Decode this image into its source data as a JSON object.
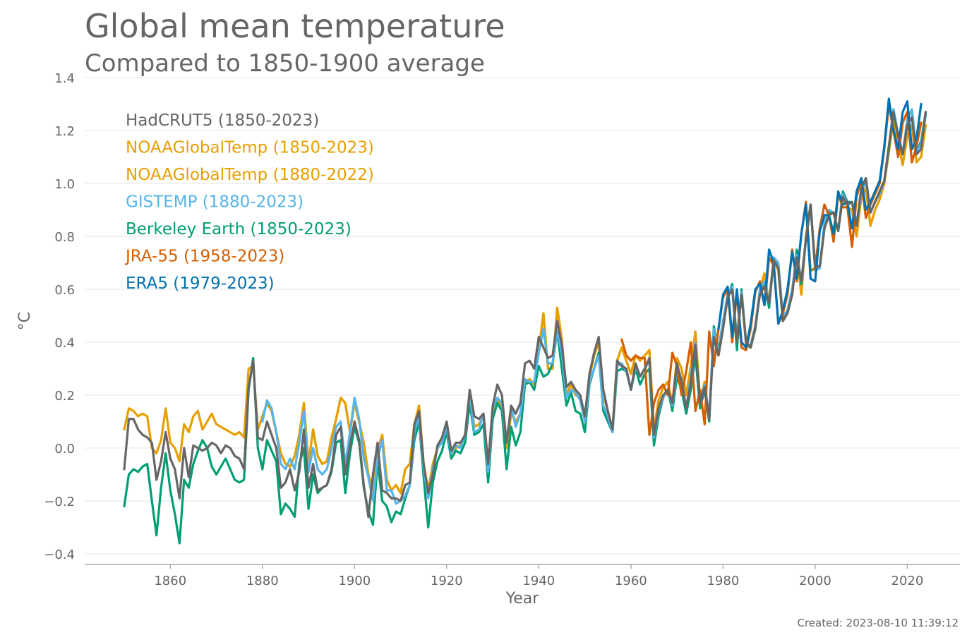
{
  "chart_data": {
    "type": "line",
    "title": "Global mean temperature",
    "subtitle": "Compared to 1850-1900 average",
    "xlabel": "Year",
    "ylabel": "°C",
    "xlim": [
      1833,
      2023
    ],
    "ylim": [
      -0.44,
      1.4
    ],
    "yticks": [
      -0.4,
      -0.2,
      0.0,
      0.2,
      0.4,
      0.6,
      0.8,
      1.0,
      1.2,
      1.4
    ],
    "ytick_labels": [
      "−0.4",
      "−0.2",
      "0.0",
      "0.2",
      "0.4",
      "0.6",
      "0.8",
      "1.0",
      "1.2",
      "1.4"
    ],
    "xticks": [
      1860,
      1880,
      1900,
      1920,
      1940,
      1960,
      1980,
      2000,
      2020
    ],
    "xtick_labels": [
      "1860",
      "1880",
      "1900",
      "1920",
      "1940",
      "1960",
      "1980",
      "2000",
      "2020"
    ],
    "grid": "horizontal",
    "legend_position": "top-left",
    "series": [
      {
        "name": "HadCRUT5 (1850-2023)",
        "color": "#666666",
        "start": 1850,
        "values": [
          -0.08,
          0.11,
          0.11,
          0.07,
          0.05,
          0.04,
          0.02,
          -0.12,
          -0.05,
          0.06,
          -0.04,
          -0.08,
          -0.19,
          0.0,
          -0.11,
          0.01,
          0.0,
          -0.01,
          0.0,
          0.02,
          0.01,
          -0.02,
          0.01,
          0.0,
          -0.03,
          -0.04,
          -0.08,
          0.23,
          0.33,
          0.04,
          0.03,
          0.1,
          0.05,
          0.0,
          -0.15,
          -0.13,
          -0.08,
          -0.16,
          -0.09,
          0.07,
          -0.15,
          -0.06,
          -0.16,
          -0.15,
          -0.14,
          -0.08,
          0.05,
          0.08,
          -0.1,
          0.01,
          0.1,
          0.03,
          -0.14,
          -0.26,
          -0.1,
          0.02,
          -0.16,
          -0.17,
          -0.19,
          -0.19,
          -0.2,
          -0.14,
          -0.13,
          0.09,
          0.14,
          -0.06,
          -0.17,
          -0.1,
          0.01,
          0.04,
          0.1,
          -0.01,
          0.02,
          0.02,
          0.05,
          0.22,
          0.12,
          0.11,
          0.13,
          -0.06,
          0.16,
          0.24,
          0.2,
          0.02,
          0.16,
          0.13,
          0.17,
          0.32,
          0.33,
          0.3,
          0.42,
          0.38,
          0.34,
          0.35,
          0.48,
          0.39,
          0.23,
          0.25,
          0.22,
          0.2,
          0.12,
          0.28,
          0.36,
          0.42,
          0.22,
          0.14,
          0.07,
          0.33,
          0.31,
          0.3,
          0.22,
          0.32,
          0.27,
          0.3,
          0.34,
          0.05,
          0.15,
          0.2,
          0.22,
          0.17,
          0.32,
          0.25,
          0.15,
          0.25,
          0.39,
          0.17,
          0.23,
          0.11,
          0.42,
          0.35,
          0.45,
          0.57,
          0.6,
          0.4,
          0.58,
          0.4,
          0.38,
          0.46,
          0.58,
          0.61,
          0.55,
          0.71,
          0.68,
          0.48,
          0.51,
          0.58,
          0.72,
          0.63,
          0.79,
          0.92,
          0.68,
          0.69,
          0.83,
          0.88,
          0.89,
          0.82,
          0.95,
          0.92,
          0.93,
          0.84,
          0.98,
          1.02,
          0.89,
          0.93,
          0.97,
          1.01,
          1.14,
          1.27,
          1.18,
          1.11,
          1.22,
          1.25,
          1.11,
          1.13,
          1.27
        ]
      },
      {
        "name": "NOAAGlobalTemp (1850-2023)",
        "color": "#E69F00",
        "start": 1850,
        "values": [
          0.07,
          0.15,
          0.14,
          0.12,
          0.13,
          0.12,
          0.0,
          -0.02,
          0.03,
          0.15,
          0.02,
          0.0,
          -0.05,
          0.09,
          0.06,
          0.12,
          0.14,
          0.07,
          0.1,
          0.13,
          0.09,
          0.08,
          0.07,
          0.06,
          0.05,
          0.06,
          0.04,
          0.3,
          0.31,
          0.07,
          0.12,
          0.17,
          0.14,
          0.06,
          -0.02,
          -0.06,
          -0.07,
          -0.03,
          0.05,
          0.17,
          -0.06,
          0.07,
          -0.03,
          -0.06,
          -0.05,
          0.04,
          0.11,
          0.19,
          0.17,
          0.06,
          0.17,
          0.1,
          0.02,
          -0.1,
          -0.16,
          -0.01,
          0.05,
          -0.12,
          -0.16,
          -0.14,
          -0.17,
          -0.08,
          -0.06,
          0.09,
          0.16,
          -0.06,
          -0.16,
          -0.06,
          0.0,
          0.03,
          0.08,
          -0.02,
          0.0,
          0.01,
          0.04,
          0.2,
          0.08,
          0.09,
          0.12,
          -0.06,
          0.14,
          0.19,
          0.14,
          0.0,
          0.13,
          0.1,
          0.13,
          0.25,
          0.26,
          0.24,
          0.37,
          0.51,
          0.3,
          0.3,
          0.53,
          0.41,
          0.2,
          0.24,
          0.2,
          0.19,
          0.11,
          0.27,
          0.35,
          0.4,
          0.2,
          0.14,
          0.07,
          0.33,
          0.38,
          0.33,
          0.28,
          0.35,
          0.33,
          0.35,
          0.37,
          0.07,
          0.18,
          0.23,
          0.25,
          0.17,
          0.34,
          0.3,
          0.2,
          0.31,
          0.44,
          0.18,
          0.25,
          0.11,
          0.43,
          0.35,
          0.46,
          0.58,
          0.6,
          0.42,
          0.59,
          0.39,
          0.38,
          0.45,
          0.6,
          0.66,
          0.54,
          0.71,
          0.67,
          0.48,
          0.52,
          0.58,
          0.74,
          0.58,
          0.8,
          0.92,
          0.68,
          0.68,
          0.84,
          0.88,
          0.89,
          0.82,
          0.95,
          0.91,
          0.9,
          0.8,
          0.95,
          0.98,
          0.84,
          0.9,
          0.94,
          1.0,
          1.12,
          1.24,
          1.16,
          1.07,
          1.18,
          1.22,
          1.08,
          1.1,
          1.22
        ]
      },
      {
        "name": "NOAAGlobalTemp (1880-2022)",
        "color": "#E69F00",
        "start": 1880,
        "values": [
          0.12,
          0.17,
          0.14,
          0.06,
          -0.02,
          -0.06,
          -0.07,
          -0.03,
          0.05,
          0.17,
          -0.06,
          0.07,
          -0.03,
          -0.06,
          -0.05,
          0.04,
          0.11,
          0.19,
          0.17,
          0.06,
          0.17,
          0.1,
          0.02,
          -0.1,
          -0.16,
          -0.01,
          0.05,
          -0.12,
          -0.16,
          -0.14,
          -0.17,
          -0.08,
          -0.06,
          0.09,
          0.16,
          -0.06,
          -0.16,
          -0.06,
          0.0,
          0.03,
          0.08,
          -0.02,
          0.0,
          0.01,
          0.04,
          0.2,
          0.08,
          0.09,
          0.12,
          -0.06,
          0.14,
          0.19,
          0.14,
          0.0,
          0.13,
          0.1,
          0.13,
          0.25,
          0.26,
          0.24,
          0.37,
          0.51,
          0.3,
          0.3,
          0.53,
          0.41,
          0.2,
          0.24,
          0.2,
          0.19,
          0.11,
          0.27,
          0.35,
          0.4,
          0.2,
          0.14,
          0.07,
          0.33,
          0.38,
          0.33,
          0.28,
          0.35,
          0.33,
          0.35,
          0.37,
          0.07,
          0.18,
          0.23,
          0.25,
          0.17,
          0.34,
          0.3,
          0.2,
          0.31,
          0.44,
          0.18,
          0.25,
          0.11,
          0.43,
          0.35,
          0.46,
          0.58,
          0.6,
          0.42,
          0.59,
          0.39,
          0.38,
          0.45,
          0.6,
          0.66,
          0.54,
          0.71,
          0.67,
          0.48,
          0.52,
          0.58,
          0.74,
          0.58,
          0.8,
          0.92,
          0.68,
          0.68,
          0.84,
          0.88,
          0.89,
          0.82,
          0.95,
          0.91,
          0.9,
          0.8,
          0.95,
          0.98,
          0.84,
          0.9,
          0.94,
          1.0,
          1.12,
          1.24,
          1.16,
          1.07,
          1.18,
          1.22,
          1.08
        ]
      },
      {
        "name": "GISTEMP (1880-2023)",
        "color": "#56B4E9",
        "start": 1880,
        "values": [
          0.1,
          0.18,
          0.15,
          0.06,
          -0.06,
          -0.08,
          -0.04,
          -0.08,
          0.02,
          0.14,
          -0.09,
          0.0,
          -0.08,
          -0.1,
          -0.08,
          0.0,
          0.08,
          0.1,
          -0.06,
          0.06,
          0.19,
          0.11,
          -0.04,
          -0.11,
          -0.2,
          -0.04,
          0.03,
          -0.16,
          -0.16,
          -0.21,
          -0.2,
          -0.18,
          -0.14,
          0.06,
          0.12,
          -0.08,
          -0.19,
          -0.08,
          0.0,
          0.02,
          0.08,
          -0.02,
          0.01,
          0.0,
          0.05,
          0.21,
          0.06,
          0.07,
          0.13,
          -0.09,
          0.15,
          0.19,
          0.17,
          0.02,
          0.16,
          0.08,
          0.13,
          0.26,
          0.25,
          0.25,
          0.36,
          0.45,
          0.32,
          0.32,
          0.44,
          0.36,
          0.19,
          0.22,
          0.21,
          0.18,
          0.1,
          0.25,
          0.3,
          0.35,
          0.16,
          0.12,
          0.06,
          0.31,
          0.32,
          0.29,
          0.22,
          0.31,
          0.27,
          0.3,
          0.33,
          0.04,
          0.14,
          0.19,
          0.22,
          0.16,
          0.3,
          0.26,
          0.15,
          0.27,
          0.4,
          0.17,
          0.24,
          0.12,
          0.45,
          0.36,
          0.48,
          0.58,
          0.61,
          0.41,
          0.59,
          0.39,
          0.39,
          0.46,
          0.6,
          0.63,
          0.55,
          0.72,
          0.7,
          0.5,
          0.52,
          0.6,
          0.73,
          0.63,
          0.78,
          0.91,
          0.67,
          0.68,
          0.85,
          0.9,
          0.89,
          0.82,
          0.96,
          0.92,
          0.93,
          0.85,
          0.96,
          1.01,
          0.89,
          0.93,
          0.96,
          1.01,
          1.14,
          1.28,
          1.19,
          1.11,
          1.24,
          1.28,
          1.12,
          1.15,
          1.26
        ]
      },
      {
        "name": "Berkeley Earth (1850-2023)",
        "color": "#009E73",
        "start": 1850,
        "values": [
          -0.22,
          -0.1,
          -0.08,
          -0.09,
          -0.07,
          -0.06,
          -0.2,
          -0.33,
          -0.15,
          -0.02,
          -0.16,
          -0.25,
          -0.36,
          -0.12,
          -0.15,
          -0.06,
          -0.01,
          0.03,
          0.0,
          -0.07,
          -0.1,
          -0.07,
          -0.04,
          -0.08,
          -0.12,
          -0.13,
          -0.12,
          0.22,
          0.34,
          0.0,
          -0.08,
          0.03,
          -0.01,
          -0.05,
          -0.25,
          -0.21,
          -0.23,
          -0.26,
          -0.06,
          0.0,
          -0.23,
          -0.1,
          -0.17,
          -0.15,
          -0.14,
          -0.09,
          0.02,
          0.03,
          -0.17,
          -0.02,
          0.08,
          0.02,
          -0.15,
          -0.24,
          -0.29,
          -0.05,
          -0.2,
          -0.22,
          -0.28,
          -0.24,
          -0.25,
          -0.19,
          -0.14,
          0.03,
          0.1,
          -0.11,
          -0.3,
          -0.13,
          -0.05,
          -0.01,
          0.06,
          -0.04,
          -0.01,
          -0.02,
          0.02,
          0.17,
          0.05,
          0.06,
          0.09,
          -0.13,
          0.11,
          0.17,
          0.14,
          -0.08,
          0.08,
          0.01,
          0.06,
          0.24,
          0.25,
          0.22,
          0.31,
          0.27,
          0.28,
          0.32,
          0.44,
          0.3,
          0.16,
          0.21,
          0.14,
          0.13,
          0.06,
          0.24,
          0.3,
          0.36,
          0.14,
          0.1,
          0.06,
          0.29,
          0.3,
          0.29,
          0.22,
          0.3,
          0.24,
          0.28,
          0.3,
          0.01,
          0.12,
          0.19,
          0.22,
          0.14,
          0.27,
          0.22,
          0.13,
          0.22,
          0.35,
          0.15,
          0.22,
          0.1,
          0.46,
          0.37,
          0.48,
          0.57,
          0.62,
          0.37,
          0.6,
          0.4,
          0.38,
          0.45,
          0.59,
          0.62,
          0.53,
          0.72,
          0.69,
          0.48,
          0.51,
          0.58,
          0.75,
          0.62,
          0.79,
          0.92,
          0.68,
          0.68,
          0.83,
          0.89,
          0.89,
          0.82,
          0.97,
          0.93,
          0.93,
          0.84,
          0.97,
          1.02,
          0.89,
          0.93,
          0.97,
          1.01,
          1.13,
          1.28,
          1.18,
          1.11,
          1.24,
          1.28,
          1.12,
          1.16,
          1.27
        ]
      },
      {
        "name": "JRA-55 (1958-2023)",
        "color": "#D55E00",
        "start": 1958,
        "values": [
          0.41,
          0.35,
          0.33,
          0.35,
          0.34,
          0.34,
          0.05,
          0.17,
          0.22,
          0.24,
          0.2,
          0.36,
          0.31,
          0.2,
          0.29,
          0.4,
          0.14,
          0.22,
          0.09,
          0.44,
          0.31,
          0.45,
          0.57,
          0.6,
          0.4,
          0.59,
          0.38,
          0.37,
          0.45,
          0.59,
          0.63,
          0.54,
          0.72,
          0.69,
          0.47,
          0.51,
          0.58,
          0.75,
          0.63,
          0.81,
          0.93,
          0.67,
          0.68,
          0.83,
          0.92,
          0.88,
          0.78,
          0.96,
          0.91,
          0.91,
          0.76,
          0.95,
          1.01,
          0.87,
          0.92,
          0.96,
          1.0,
          1.13,
          1.3,
          1.2,
          1.1,
          1.23,
          1.27,
          1.08,
          1.14,
          1.23
        ]
      },
      {
        "name": "ERA5 (1979-2023)",
        "color": "#0072B2",
        "start": 1979,
        "values": [
          0.45,
          0.58,
          0.61,
          0.42,
          0.6,
          0.4,
          0.38,
          0.47,
          0.6,
          0.62,
          0.54,
          0.75,
          0.7,
          0.47,
          0.52,
          0.6,
          0.74,
          0.64,
          0.81,
          0.92,
          0.64,
          0.63,
          0.82,
          0.88,
          0.88,
          0.81,
          0.97,
          0.92,
          0.93,
          0.83,
          0.97,
          1.02,
          0.9,
          0.93,
          0.97,
          1.01,
          1.14,
          1.32,
          1.2,
          1.13,
          1.27,
          1.31,
          1.13,
          1.17,
          1.3
        ]
      }
    ]
  },
  "footer": {
    "created": "Created: 2023-08-10 11:39:12"
  }
}
